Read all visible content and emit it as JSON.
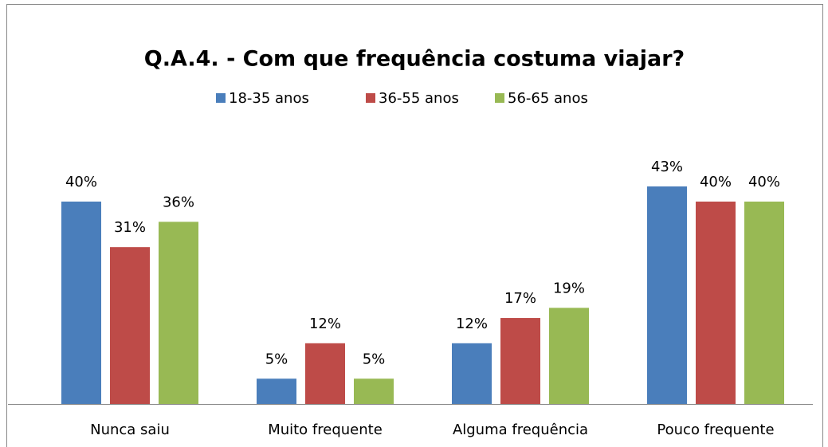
{
  "chart_data": {
    "type": "bar",
    "title": "Q.A.4. - Com que frequência costuma viajar?",
    "categories": [
      "Nunca saiu",
      "Muito frequente",
      "Alguma frequência",
      "Pouco frequente"
    ],
    "legend": "top",
    "series": [
      {
        "name": "18-35 anos",
        "color": "#4a7ebb",
        "values": [
          40,
          5,
          12,
          43
        ],
        "value_labels": [
          "40%",
          "5%",
          "12%",
          "43%"
        ]
      },
      {
        "name": "36-55 anos",
        "color": "#be4b48",
        "values": [
          31,
          12,
          17,
          40
        ],
        "value_labels": [
          "31%",
          "12%",
          "17%",
          "40%"
        ]
      },
      {
        "name": "56-65 anos",
        "color": "#98b954",
        "values": [
          36,
          5,
          19,
          40
        ],
        "value_labels": [
          "36%",
          "5%",
          "19%",
          "40%"
        ]
      }
    ]
  }
}
